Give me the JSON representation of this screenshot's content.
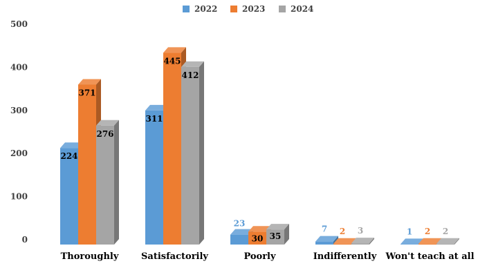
{
  "chart_data": {
    "type": "bar",
    "title": "",
    "xlabel": "",
    "ylabel": "",
    "ylim": [
      0,
      500
    ],
    "yticks": [
      0,
      100,
      200,
      300,
      400,
      500
    ],
    "grid": false,
    "legend_position": "top-center",
    "three_d": true,
    "categories": [
      "Thoroughly",
      "Satisfactorily",
      "Poorly",
      "Indifferently",
      "Won't teach at all"
    ],
    "series": [
      {
        "name": "2022",
        "values": [
          224,
          311,
          23,
          7,
          1
        ],
        "color": "#5b9bd5"
      },
      {
        "name": "2023",
        "values": [
          371,
          445,
          30,
          2,
          2
        ],
        "color": "#ed7d31"
      },
      {
        "name": "2024",
        "values": [
          276,
          412,
          35,
          3,
          2
        ],
        "color": "#a5a5a5"
      }
    ]
  }
}
